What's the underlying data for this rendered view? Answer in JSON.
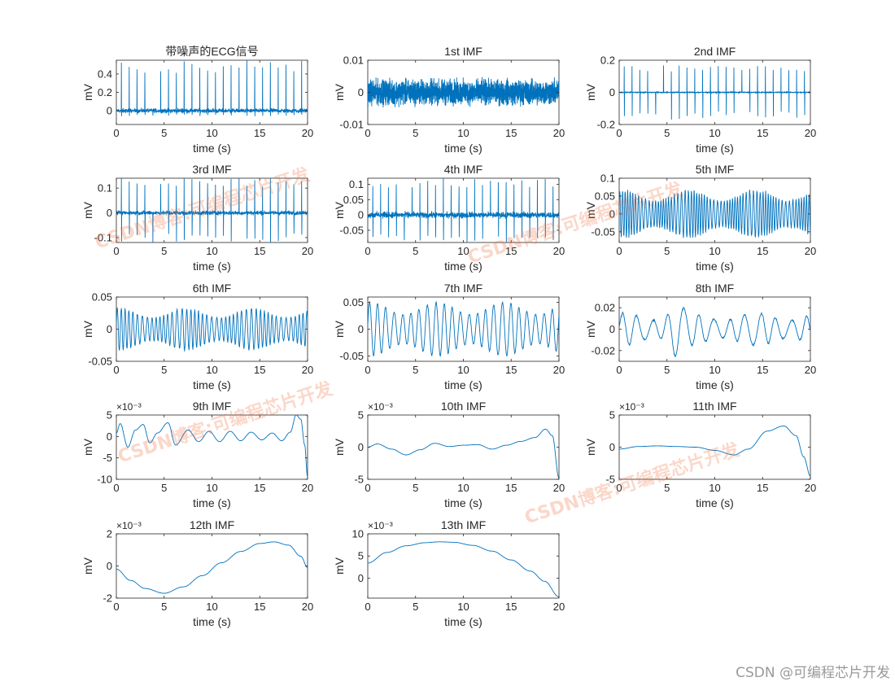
{
  "figure": {
    "subplots": [
      {
        "title": "带噪声的ECG信号",
        "xlabel": "time (s)",
        "ylabel": "mV",
        "exp": ""
      },
      {
        "title": "1st IMF",
        "xlabel": "time (s)",
        "ylabel": "mV",
        "exp": ""
      },
      {
        "title": "2nd IMF",
        "xlabel": "time (s)",
        "ylabel": "mV",
        "exp": ""
      },
      {
        "title": "3rd IMF",
        "xlabel": "time (s)",
        "ylabel": "mV",
        "exp": ""
      },
      {
        "title": "4th IMF",
        "xlabel": "time (s)",
        "ylabel": "mV",
        "exp": ""
      },
      {
        "title": "5th IMF",
        "xlabel": "time (s)",
        "ylabel": "mV",
        "exp": ""
      },
      {
        "title": "6th IMF",
        "xlabel": "time (s)",
        "ylabel": "mV",
        "exp": ""
      },
      {
        "title": "7th IMF",
        "xlabel": "time (s)",
        "ylabel": "mV",
        "exp": ""
      },
      {
        "title": "8th IMF",
        "xlabel": "time (s)",
        "ylabel": "mV",
        "exp": ""
      },
      {
        "title": "9th IMF",
        "xlabel": "time (s)",
        "ylabel": "mV",
        "exp": "×10⁻³"
      },
      {
        "title": "10th IMF",
        "xlabel": "time (s)",
        "ylabel": "mV",
        "exp": "×10⁻³"
      },
      {
        "title": "11th IMF",
        "xlabel": "time (s)",
        "ylabel": "mV",
        "exp": "×10⁻³"
      },
      {
        "title": "12th IMF",
        "xlabel": "time (s)",
        "ylabel": "mV",
        "exp": "×10⁻³"
      },
      {
        "title": "13th IMF",
        "xlabel": "time (s)",
        "ylabel": "mV",
        "exp": "×10⁻³"
      }
    ]
  },
  "watermark": {
    "text": "CSDN博客:可编程芯片开发",
    "color": "#f06e3c"
  },
  "credit": "CSDN @可编程芯片开发",
  "colors": {
    "line": "#0072BD",
    "axis": "#262626"
  },
  "chart_data": [
    {
      "type": "line",
      "title": "带噪声的ECG信号",
      "xlabel": "time (s)",
      "ylabel": "mV",
      "xlim": [
        0,
        20
      ],
      "ylim": [
        -0.15,
        0.55
      ],
      "xticks": [
        0,
        5,
        10,
        15,
        20
      ],
      "yticks": [
        0,
        0.2,
        0.4
      ],
      "ytick_labels": [
        "0",
        "0.2",
        "0.4"
      ],
      "signal": {
        "kind": "ecg",
        "base": 0.0,
        "noise": 0.035,
        "spike_max": 0.55,
        "spike_min": -0.06,
        "n": 1100
      }
    },
    {
      "type": "line",
      "title": "1st IMF",
      "xlabel": "time (s)",
      "ylabel": "mV",
      "xlim": [
        0,
        20
      ],
      "ylim": [
        -0.01,
        0.01
      ],
      "xticks": [
        0,
        5,
        10,
        15,
        20
      ],
      "yticks": [
        -0.01,
        0,
        0.01
      ],
      "ytick_labels": [
        "-0.01",
        "0",
        "0.01"
      ],
      "signal": {
        "kind": "noise",
        "amp": 0.0055,
        "n": 2400
      }
    },
    {
      "type": "line",
      "title": "2nd IMF",
      "xlabel": "time (s)",
      "ylabel": "mV",
      "xlim": [
        0,
        20
      ],
      "ylim": [
        -0.2,
        0.2
      ],
      "xticks": [
        0,
        5,
        10,
        15,
        20
      ],
      "yticks": [
        -0.2,
        0,
        0.2
      ],
      "ytick_labels": [
        "-0.2",
        "0",
        "0.2"
      ],
      "signal": {
        "kind": "ecg",
        "base": 0.0,
        "noise": 0.004,
        "spike_max": 0.17,
        "spike_min": -0.17,
        "n": 1100
      }
    },
    {
      "type": "line",
      "title": "3rd IMF",
      "xlabel": "time (s)",
      "ylabel": "mV",
      "xlim": [
        0,
        20
      ],
      "ylim": [
        -0.12,
        0.14
      ],
      "xticks": [
        0,
        5,
        10,
        15,
        20
      ],
      "yticks": [
        -0.1,
        0,
        0.1
      ],
      "ytick_labels": [
        "-0.1",
        "0",
        "0.1"
      ],
      "signal": {
        "kind": "ecg",
        "base": 0.0,
        "noise": 0.012,
        "spike_max": 0.14,
        "spike_min": -0.12,
        "n": 1100
      }
    },
    {
      "type": "line",
      "title": "4th IMF",
      "xlabel": "time (s)",
      "ylabel": "mV",
      "xlim": [
        0,
        20
      ],
      "ylim": [
        -0.09,
        0.12
      ],
      "xticks": [
        0,
        5,
        10,
        15,
        20
      ],
      "yticks": [
        -0.05,
        0,
        0.05,
        0.1
      ],
      "ytick_labels": [
        "-0.05",
        "0",
        "0.05",
        "0.1"
      ],
      "signal": {
        "kind": "ecg",
        "base": 0.0,
        "noise": 0.015,
        "spike_max": 0.12,
        "spike_min": -0.09,
        "n": 1100
      }
    },
    {
      "type": "line",
      "title": "5th IMF",
      "xlabel": "time (s)",
      "ylabel": "mV",
      "xlim": [
        0,
        20
      ],
      "ylim": [
        -0.08,
        0.1
      ],
      "xticks": [
        0,
        5,
        10,
        15,
        20
      ],
      "yticks": [
        -0.05,
        0,
        0.05,
        0.1
      ],
      "ytick_labels": [
        "-0.05",
        "0",
        "0.05",
        "0.1"
      ],
      "signal": {
        "kind": "osc",
        "amp": 0.065,
        "freq": 3.2,
        "n": 1400,
        "irregular": 0.5
      }
    },
    {
      "type": "line",
      "title": "6th IMF",
      "xlabel": "time (s)",
      "ylabel": "mV",
      "xlim": [
        0,
        20
      ],
      "ylim": [
        -0.05,
        0.05
      ],
      "xticks": [
        0,
        5,
        10,
        15,
        20
      ],
      "yticks": [
        -0.05,
        0,
        0.05
      ],
      "ytick_labels": [
        "-0.05",
        "0",
        "0.05"
      ],
      "signal": {
        "kind": "osc",
        "amp": 0.032,
        "freq": 2.2,
        "n": 1200,
        "irregular": 0.4
      }
    },
    {
      "type": "line",
      "title": "7th IMF",
      "xlabel": "time (s)",
      "ylabel": "mV",
      "xlim": [
        0,
        20
      ],
      "ylim": [
        -0.06,
        0.06
      ],
      "xticks": [
        0,
        5,
        10,
        15,
        20
      ],
      "yticks": [
        -0.05,
        0,
        0.05
      ],
      "ytick_labels": [
        "-0.05",
        "0",
        "0.05"
      ],
      "signal": {
        "kind": "osc",
        "amp": 0.05,
        "freq": 1.15,
        "n": 900,
        "irregular": 0.15
      }
    },
    {
      "type": "line",
      "title": "8th IMF",
      "xlabel": "time (s)",
      "ylabel": "mV",
      "xlim": [
        0,
        20
      ],
      "ylim": [
        -0.03,
        0.03
      ],
      "xticks": [
        0,
        5,
        10,
        15,
        20
      ],
      "yticks": [
        -0.02,
        0,
        0.02
      ],
      "ytick_labels": [
        "-0.02",
        "0",
        "0.02"
      ],
      "signal": {
        "kind": "osc",
        "amp": 0.015,
        "freq": 0.62,
        "n": 700,
        "irregular": 0.4,
        "burst": [
          6.0,
          0.028
        ]
      }
    },
    {
      "type": "line",
      "title": "9th IMF",
      "xlabel": "time (s)",
      "ylabel": "mV",
      "xlim": [
        0,
        20
      ],
      "ylim": [
        -0.01,
        0.005
      ],
      "xticks": [
        0,
        5,
        10,
        15,
        20
      ],
      "yticks": [
        -0.01,
        -0.005,
        0,
        0.005
      ],
      "ytick_labels": [
        "-10",
        "-5",
        "0",
        "5"
      ],
      "signal": {
        "kind": "curve",
        "points": [
          [
            0,
            0.0008
          ],
          [
            0.4,
            0.003
          ],
          [
            1.2,
            -0.0025
          ],
          [
            2.0,
            0.0015
          ],
          [
            2.8,
            0.0028
          ],
          [
            3.5,
            -0.0015
          ],
          [
            4.3,
            0.0008
          ],
          [
            5.4,
            0.0032
          ],
          [
            6.2,
            -0.002
          ],
          [
            7.5,
            0.0015
          ],
          [
            8.6,
            -0.0012
          ],
          [
            9.7,
            0.0012
          ],
          [
            10.8,
            -0.0012
          ],
          [
            11.9,
            0.0012
          ],
          [
            13,
            -0.001
          ],
          [
            14.1,
            0.001
          ],
          [
            15.2,
            -0.0008
          ],
          [
            16.3,
            0.0008
          ],
          [
            17.3,
            -0.001
          ],
          [
            18.2,
            0.001
          ],
          [
            18.8,
            0.005
          ],
          [
            19.3,
            0.004
          ],
          [
            19.7,
            -0.002
          ],
          [
            20,
            -0.0095
          ]
        ]
      }
    },
    {
      "type": "line",
      "title": "10th IMF",
      "xlabel": "time (s)",
      "ylabel": "mV",
      "xlim": [
        0,
        20
      ],
      "ylim": [
        -0.005,
        0.005
      ],
      "xticks": [
        0,
        5,
        10,
        15,
        20
      ],
      "yticks": [
        -0.005,
        0,
        0.005
      ],
      "ytick_labels": [
        "-5",
        "0",
        "5"
      ],
      "signal": {
        "kind": "curve",
        "points": [
          [
            0,
            0.0
          ],
          [
            1,
            0.0005
          ],
          [
            2.5,
            -0.0003
          ],
          [
            4,
            -0.0012
          ],
          [
            5.5,
            -0.0004
          ],
          [
            7,
            0.0006
          ],
          [
            8.5,
            0.0001
          ],
          [
            10,
            0.0003
          ],
          [
            11.5,
            0.0004
          ],
          [
            13,
            -0.0003
          ],
          [
            14.5,
            0.0003
          ],
          [
            16,
            0.0009
          ],
          [
            17.5,
            0.0015
          ],
          [
            18.6,
            0.0028
          ],
          [
            19.3,
            0.0018
          ],
          [
            20,
            -0.0048
          ]
        ]
      }
    },
    {
      "type": "line",
      "title": "11th IMF",
      "xlabel": "time (s)",
      "ylabel": "mV",
      "xlim": [
        0,
        20
      ],
      "ylim": [
        -0.005,
        0.005
      ],
      "xticks": [
        0,
        5,
        10,
        15,
        20
      ],
      "yticks": [
        -0.005,
        0,
        0.005
      ],
      "ytick_labels": [
        "-5",
        "0",
        "5"
      ],
      "signal": {
        "kind": "curve",
        "points": [
          [
            0,
            -0.0003
          ],
          [
            2,
            0.0001
          ],
          [
            4,
            0.0002
          ],
          [
            6,
            0.0001
          ],
          [
            8,
            0.0
          ],
          [
            10,
            -0.0005
          ],
          [
            12,
            -0.0012
          ],
          [
            13.5,
            -0.0003
          ],
          [
            15.5,
            0.0025
          ],
          [
            17.2,
            0.0033
          ],
          [
            18.5,
            0.0018
          ],
          [
            19.3,
            -0.0015
          ],
          [
            20,
            -0.0045
          ]
        ]
      }
    },
    {
      "type": "line",
      "title": "12th IMF",
      "xlabel": "time (s)",
      "ylabel": "mV",
      "xlim": [
        0,
        20
      ],
      "ylim": [
        -0.002,
        0.002
      ],
      "xticks": [
        0,
        5,
        10,
        15,
        20
      ],
      "yticks": [
        -0.002,
        0,
        0.002
      ],
      "ytick_labels": [
        "-2",
        "0",
        "2"
      ],
      "signal": {
        "kind": "curve",
        "points": [
          [
            0,
            -0.0002
          ],
          [
            1.5,
            -0.0009
          ],
          [
            3,
            -0.0014
          ],
          [
            5,
            -0.0017
          ],
          [
            7,
            -0.0013
          ],
          [
            9,
            -0.0006
          ],
          [
            11,
            0.0002
          ],
          [
            13,
            0.0009
          ],
          [
            15,
            0.0014
          ],
          [
            16.5,
            0.0015
          ],
          [
            18,
            0.0013
          ],
          [
            19.3,
            0.0006
          ],
          [
            20,
            -0.0001
          ]
        ]
      }
    },
    {
      "type": "line",
      "title": "13th IMF",
      "xlabel": "time (s)",
      "ylabel": "mV",
      "xlim": [
        0,
        20
      ],
      "ylim": [
        -0.0045,
        0.01
      ],
      "xticks": [
        0,
        5,
        10,
        15,
        20
      ],
      "yticks": [
        0,
        0.005,
        0.01
      ],
      "ytick_labels": [
        "0",
        "5",
        "10"
      ],
      "signal": {
        "kind": "curve",
        "points": [
          [
            0,
            0.0034
          ],
          [
            2,
            0.0058
          ],
          [
            4,
            0.0073
          ],
          [
            6,
            0.008
          ],
          [
            7.5,
            0.0082
          ],
          [
            9,
            0.0081
          ],
          [
            11,
            0.0074
          ],
          [
            13,
            0.0061
          ],
          [
            15,
            0.0041
          ],
          [
            17,
            0.0016
          ],
          [
            18.5,
            -0.0007
          ],
          [
            20,
            -0.0042
          ]
        ]
      }
    }
  ]
}
